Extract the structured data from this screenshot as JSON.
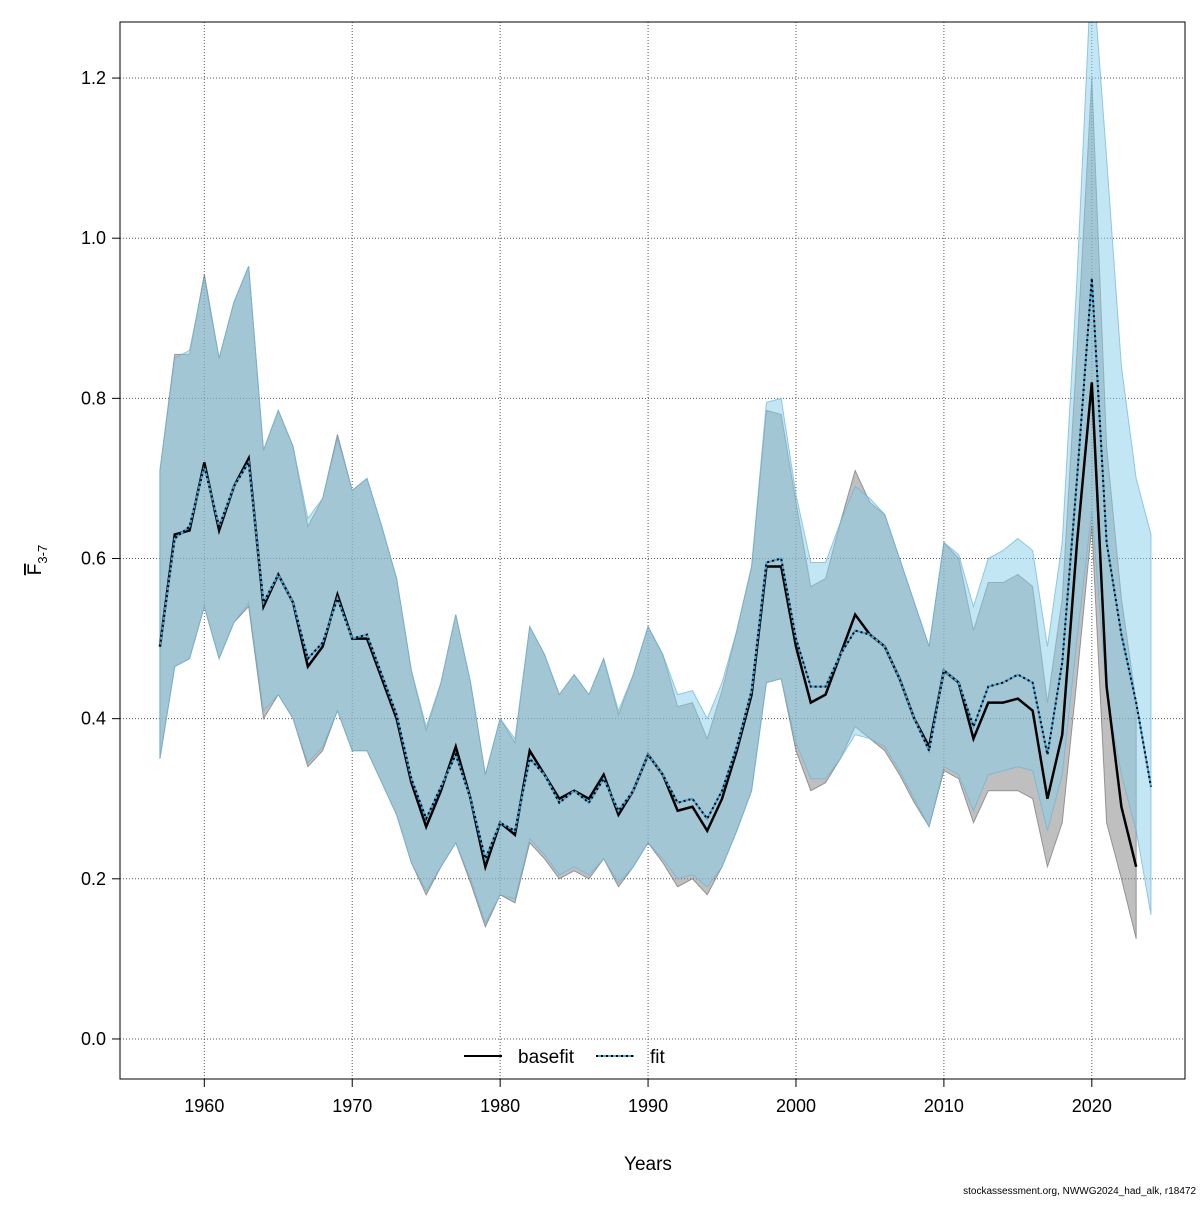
{
  "chart_data": {
    "type": "line",
    "title": "",
    "xlabel": "Years",
    "ylabel": "F",
    "ylabel_subscript": "3-7",
    "xlim": [
      1954.3,
      2026.3
    ],
    "ylim": [
      -0.05,
      1.27
    ],
    "xticks": [
      1960,
      1970,
      1980,
      1990,
      2000,
      2010,
      2020
    ],
    "yticks": [
      "0.0",
      "0.2",
      "0.4",
      "0.6",
      "0.8",
      "1.0",
      "1.2"
    ],
    "grid": true,
    "legend_position": "bottom",
    "colors": {
      "basefit_line": "#000000",
      "basefit_band": "#808080",
      "fit_line": "#000000",
      "fit_band": "#87CEEB",
      "fit_line_under": "#4aa8d8"
    },
    "series": [
      {
        "name": "basefit",
        "style": "solid",
        "x": [
          1957,
          1958,
          1959,
          1960,
          1961,
          1962,
          1963,
          1964,
          1965,
          1966,
          1967,
          1968,
          1969,
          1970,
          1971,
          1972,
          1973,
          1974,
          1975,
          1976,
          1977,
          1978,
          1979,
          1980,
          1981,
          1982,
          1983,
          1984,
          1985,
          1986,
          1987,
          1988,
          1989,
          1990,
          1991,
          1992,
          1993,
          1994,
          1995,
          1996,
          1997,
          1998,
          1999,
          2000,
          2001,
          2002,
          2003,
          2004,
          2005,
          2006,
          2007,
          2008,
          2009,
          2010,
          2011,
          2012,
          2013,
          2014,
          2015,
          2016,
          2017,
          2018,
          2019,
          2020,
          2021,
          2022,
          2023
        ],
        "y": [
          0.49,
          0.63,
          0.635,
          0.72,
          0.635,
          0.69,
          0.725,
          0.54,
          0.58,
          0.545,
          0.465,
          0.49,
          0.555,
          0.5,
          0.5,
          0.45,
          0.4,
          0.32,
          0.265,
          0.31,
          0.365,
          0.3,
          0.215,
          0.27,
          0.255,
          0.36,
          0.33,
          0.3,
          0.31,
          0.3,
          0.33,
          0.28,
          0.31,
          0.355,
          0.33,
          0.285,
          0.29,
          0.26,
          0.3,
          0.36,
          0.43,
          0.59,
          0.59,
          0.49,
          0.42,
          0.43,
          0.48,
          0.53,
          0.505,
          0.49,
          0.45,
          0.4,
          0.365,
          0.46,
          0.445,
          0.375,
          0.42,
          0.42,
          0.425,
          0.41,
          0.3,
          0.38,
          0.62,
          0.82,
          0.44,
          0.29,
          0.215
        ],
        "lower": [
          0.35,
          0.465,
          0.475,
          0.54,
          0.475,
          0.52,
          0.54,
          0.4,
          0.43,
          0.4,
          0.34,
          0.36,
          0.41,
          0.36,
          0.36,
          0.32,
          0.28,
          0.22,
          0.18,
          0.215,
          0.245,
          0.195,
          0.14,
          0.18,
          0.17,
          0.245,
          0.225,
          0.2,
          0.21,
          0.2,
          0.225,
          0.19,
          0.215,
          0.245,
          0.22,
          0.19,
          0.2,
          0.18,
          0.215,
          0.26,
          0.31,
          0.445,
          0.45,
          0.36,
          0.31,
          0.32,
          0.35,
          0.39,
          0.375,
          0.36,
          0.33,
          0.295,
          0.265,
          0.335,
          0.325,
          0.27,
          0.31,
          0.31,
          0.31,
          0.3,
          0.215,
          0.27,
          0.45,
          0.64,
          0.27,
          0.2,
          0.125
        ],
        "upper": [
          0.71,
          0.855,
          0.855,
          0.955,
          0.85,
          0.92,
          0.965,
          0.735,
          0.785,
          0.74,
          0.64,
          0.675,
          0.755,
          0.685,
          0.7,
          0.64,
          0.575,
          0.46,
          0.385,
          0.445,
          0.53,
          0.445,
          0.33,
          0.4,
          0.37,
          0.515,
          0.48,
          0.43,
          0.455,
          0.43,
          0.475,
          0.405,
          0.455,
          0.515,
          0.48,
          0.415,
          0.42,
          0.375,
          0.435,
          0.51,
          0.59,
          0.785,
          0.78,
          0.67,
          0.565,
          0.575,
          0.645,
          0.71,
          0.67,
          0.655,
          0.6,
          0.545,
          0.49,
          0.62,
          0.6,
          0.51,
          0.57,
          0.57,
          0.58,
          0.565,
          0.42,
          0.55,
          0.86,
          1.2,
          0.74,
          0.55,
          0.42
        ]
      },
      {
        "name": "fit",
        "style": "dotted",
        "x": [
          1957,
          1958,
          1959,
          1960,
          1961,
          1962,
          1963,
          1964,
          1965,
          1966,
          1967,
          1968,
          1969,
          1970,
          1971,
          1972,
          1973,
          1974,
          1975,
          1976,
          1977,
          1978,
          1979,
          1980,
          1981,
          1982,
          1983,
          1984,
          1985,
          1986,
          1987,
          1988,
          1989,
          1990,
          1991,
          1992,
          1993,
          1994,
          1995,
          1996,
          1997,
          1998,
          1999,
          2000,
          2001,
          2002,
          2003,
          2004,
          2005,
          2006,
          2007,
          2008,
          2009,
          2010,
          2011,
          2012,
          2013,
          2014,
          2015,
          2016,
          2017,
          2018,
          2019,
          2020,
          2021,
          2022,
          2023,
          2024
        ],
        "y": [
          0.49,
          0.625,
          0.64,
          0.715,
          0.64,
          0.69,
          0.72,
          0.545,
          0.58,
          0.545,
          0.475,
          0.495,
          0.55,
          0.5,
          0.505,
          0.455,
          0.405,
          0.325,
          0.275,
          0.315,
          0.355,
          0.3,
          0.225,
          0.27,
          0.26,
          0.35,
          0.33,
          0.295,
          0.31,
          0.295,
          0.325,
          0.285,
          0.31,
          0.355,
          0.33,
          0.295,
          0.3,
          0.275,
          0.31,
          0.365,
          0.435,
          0.595,
          0.6,
          0.5,
          0.44,
          0.44,
          0.48,
          0.51,
          0.505,
          0.49,
          0.45,
          0.4,
          0.36,
          0.46,
          0.445,
          0.39,
          0.44,
          0.445,
          0.455,
          0.445,
          0.355,
          0.47,
          0.7,
          0.95,
          0.62,
          0.505,
          0.42,
          0.315
        ],
        "lower": [
          0.35,
          0.465,
          0.475,
          0.54,
          0.475,
          0.52,
          0.545,
          0.41,
          0.43,
          0.4,
          0.345,
          0.365,
          0.41,
          0.36,
          0.36,
          0.32,
          0.28,
          0.22,
          0.185,
          0.215,
          0.245,
          0.2,
          0.145,
          0.18,
          0.175,
          0.25,
          0.23,
          0.205,
          0.215,
          0.205,
          0.225,
          0.195,
          0.215,
          0.245,
          0.225,
          0.2,
          0.205,
          0.19,
          0.215,
          0.26,
          0.31,
          0.445,
          0.45,
          0.37,
          0.325,
          0.325,
          0.35,
          0.38,
          0.375,
          0.365,
          0.335,
          0.3,
          0.265,
          0.34,
          0.33,
          0.285,
          0.33,
          0.335,
          0.34,
          0.335,
          0.26,
          0.33,
          0.5,
          0.66,
          0.43,
          0.33,
          0.26,
          0.155
        ],
        "upper": [
          0.71,
          0.85,
          0.86,
          0.95,
          0.85,
          0.92,
          0.965,
          0.735,
          0.785,
          0.74,
          0.65,
          0.675,
          0.75,
          0.685,
          0.7,
          0.64,
          0.575,
          0.46,
          0.39,
          0.445,
          0.53,
          0.445,
          0.33,
          0.4,
          0.375,
          0.515,
          0.48,
          0.43,
          0.455,
          0.43,
          0.475,
          0.41,
          0.455,
          0.515,
          0.48,
          0.43,
          0.435,
          0.4,
          0.445,
          0.51,
          0.59,
          0.795,
          0.8,
          0.68,
          0.595,
          0.595,
          0.645,
          0.69,
          0.675,
          0.655,
          0.6,
          0.545,
          0.49,
          0.62,
          0.605,
          0.54,
          0.6,
          0.61,
          0.625,
          0.61,
          0.49,
          0.62,
          0.95,
          1.35,
          1.1,
          0.84,
          0.7,
          0.63
        ]
      }
    ]
  },
  "footer": "stockassessment.org, NWWG2024_had_alk, r18472"
}
